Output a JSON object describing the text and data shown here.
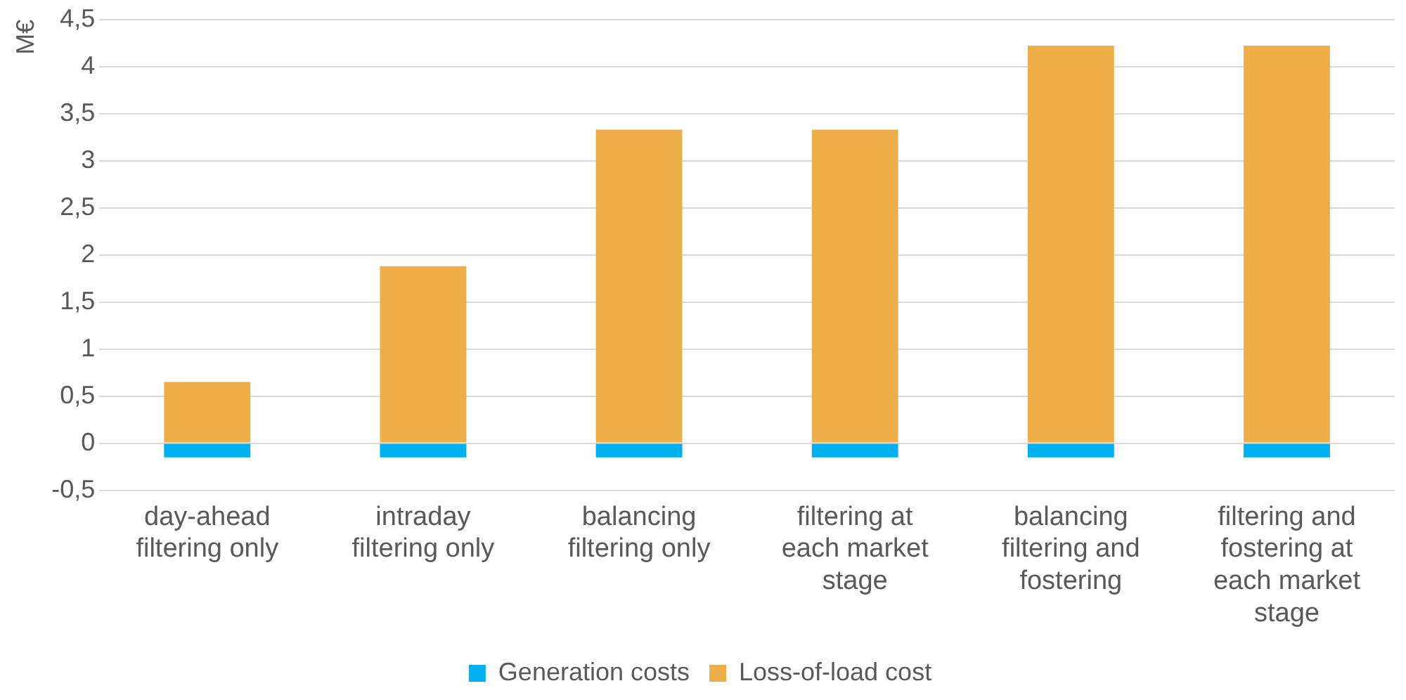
{
  "chart_data": {
    "type": "bar",
    "ylabel": "M€",
    "stacked": true,
    "grid": "y",
    "legend": "bottom",
    "categories": [
      "day-ahead filtering only",
      "intraday filtering only",
      "balancing filtering only",
      "filtering at each market stage",
      "balancing filtering and fostering",
      "filtering and fostering at each market stage"
    ],
    "series": [
      {
        "name": "Generation costs",
        "color": "#00b0f0",
        "values": [
          -0.15,
          -0.15,
          -0.15,
          -0.15,
          -0.15,
          -0.15
        ]
      },
      {
        "name": "Loss-of-load cost",
        "color": "#eeaf4b",
        "values": [
          0.65,
          1.88,
          3.33,
          3.33,
          4.22,
          4.22
        ]
      }
    ],
    "ylim": [
      -0.5,
      4.5
    ],
    "yticks": [
      {
        "value": -0.5,
        "label": "-0,5"
      },
      0,
      {
        "value": 0.5,
        "label": "0,5"
      },
      1,
      {
        "value": 1.5,
        "label": "1,5"
      },
      2,
      {
        "value": 2.5,
        "label": "2,5"
      },
      3,
      {
        "value": 3.5,
        "label": "3,5"
      },
      4,
      {
        "value": 4.5,
        "label": "4,5"
      }
    ]
  }
}
